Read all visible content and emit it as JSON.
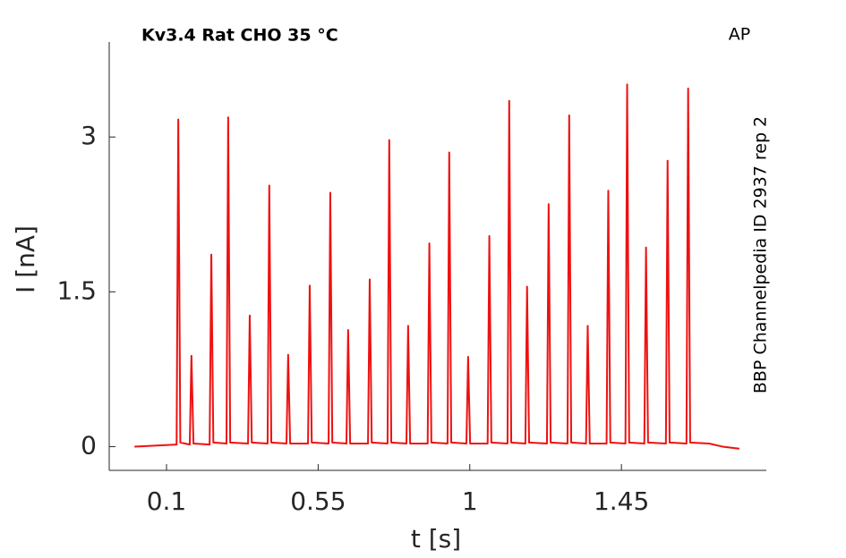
{
  "chart_data": {
    "type": "line",
    "title": "Kv3.4  Rat  CHO  35 °C",
    "corner_label": "AP",
    "side_label": "BBP Channelpedia ID 2937 rep 2",
    "xlabel": "t [s]",
    "ylabel": "I [nA]",
    "color": "#ee1111",
    "xlim": [
      -0.07,
      1.88
    ],
    "ylim": [
      -0.23,
      3.92
    ],
    "xticks": [
      0.1,
      0.55,
      1,
      1.45
    ],
    "yticks": [
      0,
      1.5,
      3
    ],
    "grid": false,
    "x": [
      0.005,
      0.13,
      0.135,
      0.141,
      0.169,
      0.174,
      0.18,
      0.228,
      0.233,
      0.239,
      0.278,
      0.283,
      0.289,
      0.342,
      0.347,
      0.353,
      0.4,
      0.405,
      0.411,
      0.456,
      0.461,
      0.467,
      0.52,
      0.525,
      0.531,
      0.581,
      0.586,
      0.592,
      0.634,
      0.639,
      0.645,
      0.698,
      0.703,
      0.709,
      0.756,
      0.761,
      0.767,
      0.812,
      0.817,
      0.823,
      0.875,
      0.88,
      0.886,
      0.934,
      0.939,
      0.945,
      0.99,
      0.995,
      1.001,
      1.053,
      1.058,
      1.064,
      1.112,
      1.117,
      1.123,
      1.165,
      1.17,
      1.176,
      1.229,
      1.234,
      1.24,
      1.29,
      1.295,
      1.301,
      1.345,
      1.35,
      1.356,
      1.406,
      1.411,
      1.417,
      1.462,
      1.467,
      1.473,
      1.518,
      1.523,
      1.529,
      1.582,
      1.587,
      1.593,
      1.643,
      1.648,
      1.654,
      1.71,
      1.75,
      1.8
    ],
    "values": [
      0,
      0.02,
      3.17,
      0.04,
      0.02,
      0.88,
      0.03,
      0.02,
      1.86,
      0.04,
      0.03,
      3.19,
      0.04,
      0.03,
      1.27,
      0.04,
      0.03,
      2.53,
      0.04,
      0.03,
      0.89,
      0.03,
      0.03,
      1.56,
      0.04,
      0.03,
      2.46,
      0.04,
      0.03,
      1.13,
      0.03,
      0.03,
      1.62,
      0.04,
      0.03,
      2.97,
      0.04,
      0.03,
      1.17,
      0.03,
      0.03,
      1.97,
      0.04,
      0.03,
      2.85,
      0.04,
      0.03,
      0.87,
      0.03,
      0.03,
      2.04,
      0.04,
      0.03,
      3.35,
      0.04,
      0.03,
      1.55,
      0.04,
      0.03,
      2.35,
      0.04,
      0.03,
      3.21,
      0.04,
      0.03,
      1.17,
      0.03,
      0.03,
      2.48,
      0.04,
      0.03,
      3.51,
      0.04,
      0.03,
      1.93,
      0.04,
      0.03,
      2.77,
      0.04,
      0.03,
      3.47,
      0.04,
      0.03,
      0.0,
      -0.02
    ]
  }
}
